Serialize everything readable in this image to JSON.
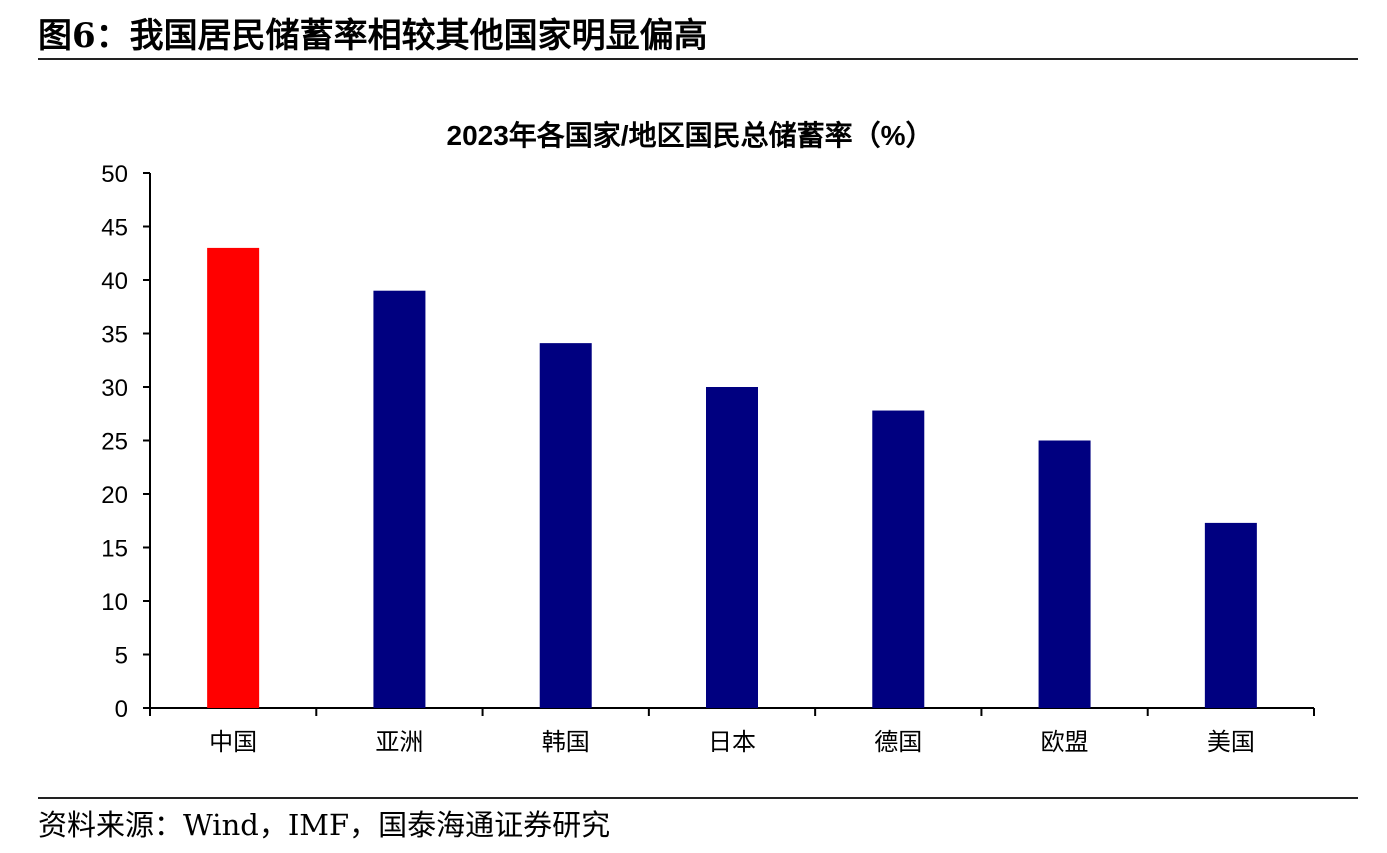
{
  "figure": {
    "title": "图6：我国居民储蓄率相较其他国家明显偏高",
    "source": "资料来源：Wind，IMF，国泰海通证券研究"
  },
  "chart_data": {
    "type": "bar",
    "title": "2023年各国家/地区国民总储蓄率（%）",
    "categories": [
      "中国",
      "亚洲",
      "韩国",
      "日本",
      "德国",
      "欧盟",
      "美国"
    ],
    "values": [
      43,
      39,
      34.1,
      30,
      27.8,
      25,
      17.3
    ],
    "colors": [
      "#ff0000",
      "#000080",
      "#000080",
      "#000080",
      "#000080",
      "#000080",
      "#000080"
    ],
    "ylim": [
      0,
      50
    ],
    "yticks": [
      0,
      5,
      10,
      15,
      20,
      25,
      30,
      35,
      40,
      45,
      50
    ],
    "grid": false,
    "legend": "none"
  }
}
